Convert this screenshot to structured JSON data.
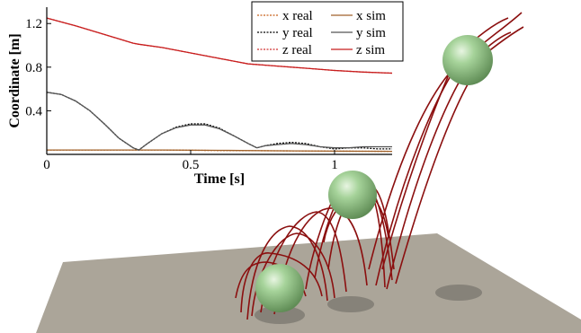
{
  "chart_data": {
    "type": "line",
    "xlabel": "Time [s]",
    "ylabel": "Coordinate [m]",
    "xlim": [
      0,
      1.2
    ],
    "ylim": [
      0,
      1.35
    ],
    "xticks": [
      "0",
      "0.5",
      "1"
    ],
    "yticks": [
      "0.4",
      "0.8",
      "1.2"
    ],
    "xtick_values": [
      0,
      0.5,
      1
    ],
    "ytick_values": [
      0.4,
      0.8,
      1.2
    ],
    "grid": false,
    "legend_position": "top-right",
    "series": [
      {
        "name": "x real",
        "color": "#c8601a",
        "dash": true,
        "x": [
          0,
          0.2,
          0.4,
          0.6,
          0.8,
          1.0,
          1.2
        ],
        "y": [
          0.04,
          0.04,
          0.04,
          0.035,
          0.033,
          0.03,
          0.028
        ]
      },
      {
        "name": "y real",
        "color": "#000000",
        "dash": true,
        "x": [
          0,
          0.05,
          0.1,
          0.15,
          0.2,
          0.25,
          0.3,
          0.32,
          0.35,
          0.4,
          0.45,
          0.5,
          0.55,
          0.6,
          0.65,
          0.7,
          0.73,
          0.76,
          0.8,
          0.85,
          0.9,
          0.95,
          1.0,
          1.05,
          1.1,
          1.15,
          1.2
        ],
        "y": [
          0.57,
          0.55,
          0.49,
          0.4,
          0.28,
          0.15,
          0.06,
          0.04,
          0.1,
          0.19,
          0.25,
          0.28,
          0.28,
          0.24,
          0.17,
          0.1,
          0.06,
          0.08,
          0.1,
          0.11,
          0.1,
          0.07,
          0.05,
          0.06,
          0.06,
          0.05,
          0.05
        ]
      },
      {
        "name": "z real",
        "color": "#d03030",
        "dash": true,
        "x": [
          0,
          0.1,
          0.2,
          0.3,
          0.32,
          0.4,
          0.5,
          0.6,
          0.7,
          0.75,
          0.8,
          0.9,
          1.0,
          1.1,
          1.2
        ],
        "y": [
          1.25,
          1.18,
          1.1,
          1.02,
          1.01,
          0.98,
          0.93,
          0.88,
          0.83,
          0.82,
          0.81,
          0.79,
          0.77,
          0.755,
          0.745
        ]
      },
      {
        "name": "x sim",
        "color": "#a0622a",
        "dash": false,
        "x": [
          0,
          0.2,
          0.4,
          0.6,
          0.8,
          1.0,
          1.2
        ],
        "y": [
          0.04,
          0.04,
          0.04,
          0.037,
          0.033,
          0.03,
          0.028
        ]
      },
      {
        "name": "y sim",
        "color": "#555555",
        "dash": false,
        "x": [
          0,
          0.05,
          0.1,
          0.15,
          0.2,
          0.25,
          0.3,
          0.32,
          0.35,
          0.4,
          0.45,
          0.5,
          0.55,
          0.6,
          0.65,
          0.7,
          0.73,
          0.76,
          0.8,
          0.85,
          0.9,
          0.95,
          1.0,
          1.05,
          1.1,
          1.15,
          1.2
        ],
        "y": [
          0.57,
          0.55,
          0.49,
          0.4,
          0.28,
          0.15,
          0.06,
          0.04,
          0.1,
          0.19,
          0.245,
          0.27,
          0.27,
          0.235,
          0.17,
          0.1,
          0.06,
          0.08,
          0.09,
          0.1,
          0.09,
          0.07,
          0.06,
          0.06,
          0.07,
          0.07,
          0.07
        ]
      },
      {
        "name": "z sim",
        "color": "#c81e1e",
        "dash": false,
        "x": [
          0,
          0.1,
          0.2,
          0.3,
          0.32,
          0.4,
          0.5,
          0.6,
          0.7,
          0.75,
          0.8,
          0.9,
          1.0,
          1.1,
          1.2
        ],
        "y": [
          1.25,
          1.18,
          1.1,
          1.02,
          1.01,
          0.98,
          0.93,
          0.88,
          0.83,
          0.82,
          0.81,
          0.79,
          0.77,
          0.755,
          0.745
        ]
      }
    ]
  },
  "scene": {
    "floor_color": "#aba599",
    "ball_color": "#a6d39a",
    "trajectory_color": "#8b0f0f",
    "shadow_color": "#7f7b73"
  }
}
